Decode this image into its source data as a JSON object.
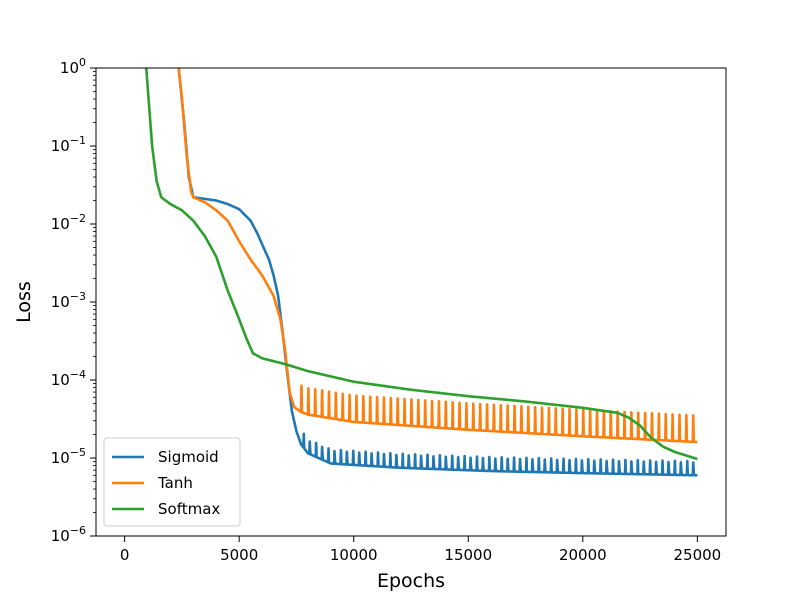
{
  "chart_data": {
    "type": "line",
    "title": "",
    "xlabel": "Epochs",
    "ylabel": "Loss",
    "xlim": [
      -1250,
      26250
    ],
    "ylim": [
      1e-06,
      1
    ],
    "yscale": "log",
    "grid": false,
    "legend_position": "lower-left",
    "x_ticks": [
      0,
      5000,
      10000,
      15000,
      20000,
      25000
    ],
    "x_tick_labels": [
      "0",
      "5000",
      "10000",
      "15000",
      "20000",
      "25000"
    ],
    "y_ticks": [
      1e-06,
      1e-05,
      0.0001,
      0.001,
      0.01,
      0.1,
      1
    ],
    "y_tick_labels": [
      {
        "base": "10",
        "exp": "−6"
      },
      {
        "base": "10",
        "exp": "−5"
      },
      {
        "base": "10",
        "exp": "−4"
      },
      {
        "base": "10",
        "exp": "−3"
      },
      {
        "base": "10",
        "exp": "−2"
      },
      {
        "base": "10",
        "exp": "−1"
      },
      {
        "base": "10",
        "exp": "0"
      }
    ],
    "series": [
      {
        "name": "Sigmoid",
        "color": "#1f77b4",
        "points": [
          [
            2300,
            1.5
          ],
          [
            2600,
            0.2
          ],
          [
            2800,
            0.04
          ],
          [
            3000,
            0.022
          ],
          [
            3500,
            0.021
          ],
          [
            4000,
            0.02
          ],
          [
            4500,
            0.018
          ],
          [
            5000,
            0.0155
          ],
          [
            5500,
            0.011
          ],
          [
            5800,
            0.0075
          ],
          [
            6000,
            0.0055
          ],
          [
            6300,
            0.0035
          ],
          [
            6500,
            0.0022
          ],
          [
            6700,
            0.0012
          ],
          [
            6900,
            0.0004
          ],
          [
            7100,
            0.00012
          ],
          [
            7300,
            4e-05
          ],
          [
            7500,
            2.2e-05
          ],
          [
            7700,
            1.5e-05
          ],
          [
            8000,
            1.15e-05
          ],
          [
            9000,
            8.5e-06
          ],
          [
            12000,
            7.5e-06
          ],
          [
            16000,
            6.8e-06
          ],
          [
            20000,
            6.4e-06
          ],
          [
            25000,
            6e-06
          ]
        ],
        "oscillation": {
          "start": 7800,
          "end": 25000,
          "period": 270,
          "peak_factor": 1.55
        }
      },
      {
        "name": "Tanh",
        "color": "#ff7f0e",
        "points": [
          [
            2300,
            1.5
          ],
          [
            2500,
            0.4
          ],
          [
            2700,
            0.08
          ],
          [
            2900,
            0.026
          ],
          [
            3000,
            0.022
          ],
          [
            3500,
            0.019
          ],
          [
            4000,
            0.015
          ],
          [
            4500,
            0.011
          ],
          [
            5000,
            0.006
          ],
          [
            5500,
            0.0035
          ],
          [
            6000,
            0.0022
          ],
          [
            6500,
            0.0012
          ],
          [
            6800,
            0.0006
          ],
          [
            7000,
            0.00025
          ],
          [
            7200,
            7e-05
          ],
          [
            7400,
            4.5e-05
          ],
          [
            7700,
            3.9e-05
          ],
          [
            8000,
            3.6e-05
          ],
          [
            10000,
            2.9e-05
          ],
          [
            15000,
            2.3e-05
          ],
          [
            20000,
            1.9e-05
          ],
          [
            25000,
            1.6e-05
          ]
        ],
        "oscillation": {
          "start": 7700,
          "end": 25000,
          "period": 300,
          "peak_factor": 2.2
        }
      },
      {
        "name": "Softmax",
        "color": "#2ca02c",
        "points": [
          [
            900,
            1.5
          ],
          [
            1000,
            0.6
          ],
          [
            1200,
            0.1
          ],
          [
            1400,
            0.035
          ],
          [
            1600,
            0.022
          ],
          [
            2000,
            0.018
          ],
          [
            2500,
            0.015
          ],
          [
            3000,
            0.011
          ],
          [
            3500,
            0.007
          ],
          [
            4000,
            0.0038
          ],
          [
            4500,
            0.0014
          ],
          [
            5000,
            0.0006
          ],
          [
            5300,
            0.00035
          ],
          [
            5600,
            0.00022
          ],
          [
            6000,
            0.00019
          ],
          [
            7000,
            0.00016
          ],
          [
            8000,
            0.00013
          ],
          [
            10000,
            9.5e-05
          ],
          [
            12500,
            7.5e-05
          ],
          [
            15000,
            6.2e-05
          ],
          [
            17500,
            5.3e-05
          ],
          [
            20000,
            4.4e-05
          ],
          [
            21500,
            3.8e-05
          ],
          [
            22000,
            3.3e-05
          ],
          [
            22500,
            2.6e-05
          ],
          [
            23000,
            1.8e-05
          ],
          [
            23500,
            1.4e-05
          ],
          [
            24000,
            1.2e-05
          ],
          [
            25000,
            9.7e-06
          ]
        ]
      }
    ]
  }
}
